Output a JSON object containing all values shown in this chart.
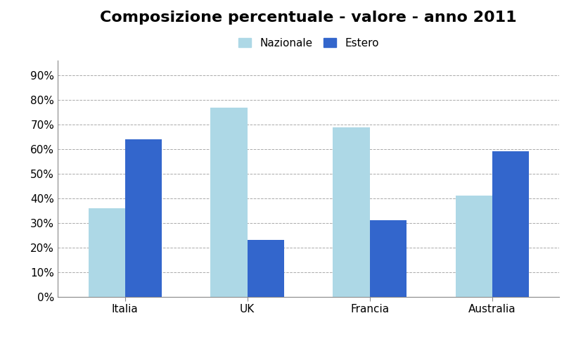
{
  "title": "Composizione percentuale - valore - anno 2011",
  "categories": [
    "Italia",
    "UK",
    "Francia",
    "Australia"
  ],
  "series": [
    {
      "label": "Nazionale",
      "values": [
        0.36,
        0.77,
        0.69,
        0.41
      ],
      "color": "#ADD8E6"
    },
    {
      "label": "Estero",
      "values": [
        0.64,
        0.23,
        0.31,
        0.59
      ],
      "color": "#3366CC"
    }
  ],
  "ylim": [
    0,
    0.96
  ],
  "yticks": [
    0.0,
    0.1,
    0.2,
    0.3,
    0.4,
    0.5,
    0.6,
    0.7,
    0.8,
    0.9
  ],
  "ytick_labels": [
    "0%",
    "10%",
    "20%",
    "30%",
    "40%",
    "50%",
    "60%",
    "70%",
    "80%",
    "90%"
  ],
  "background_color": "#FFFFFF",
  "grid_color": "#AAAAAA",
  "title_fontsize": 16,
  "legend_fontsize": 11,
  "axis_fontsize": 11,
  "bar_width": 0.3
}
